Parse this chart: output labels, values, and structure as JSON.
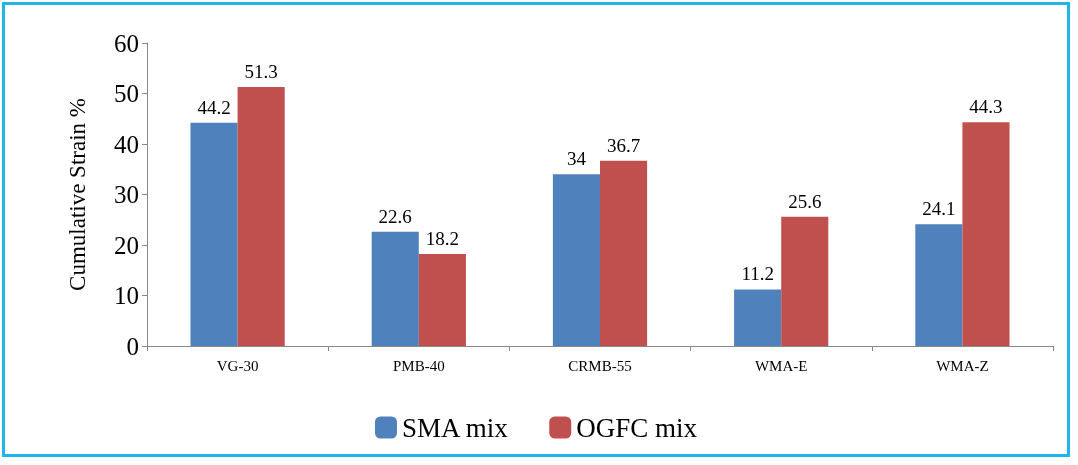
{
  "chart_data": {
    "type": "bar",
    "ylabel": "Cumulative Strain %",
    "categories": [
      "VG-30",
      "PMB-40",
      "CRMB-55",
      "WMA-E",
      "WMA-Z"
    ],
    "series": [
      {
        "name": "SMA mix",
        "color": "#4f81bd",
        "values": [
          44.2,
          22.6,
          34,
          11.2,
          24.1
        ]
      },
      {
        "name": "OGFC mix",
        "color": "#c0504d",
        "values": [
          51.3,
          18.2,
          36.7,
          25.6,
          44.3
        ]
      }
    ],
    "ylim": [
      0,
      60
    ],
    "yticks": [
      0,
      10,
      20,
      30,
      40,
      50,
      60
    ],
    "grid": false,
    "legend": "bottom",
    "data_labels": true
  }
}
